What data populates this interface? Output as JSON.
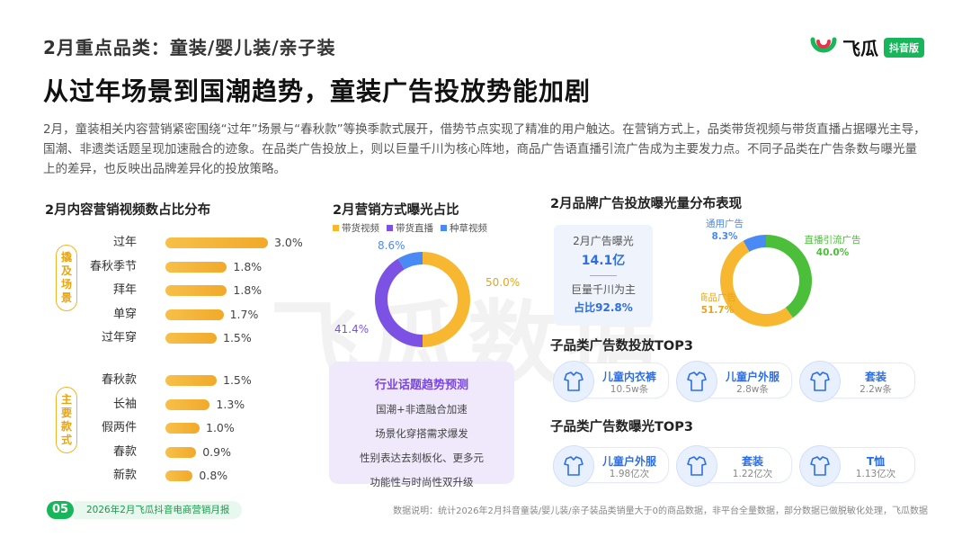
{
  "header": {
    "kicker": "2月重点品类：童装/婴儿装/亲子装",
    "title": "从过年场景到国潮趋势，童装广告投放势能加剧",
    "intro": "2月，童装相关内容营销紧密围绕“过年”场景与“春秋款”等换季款式展开，借势节点实现了精准的用户触达。在营销方式上，品类带货视频与带货直播占据曝光主导，国潮、非遗类话题呈现加速融合的迹象。在品类广告投放上，则以巨量千川为核心阵地，商品广告语直播引流广告成为主要发力点。不同子品类在广告条数与曝光量上的差异，也反映出品牌差异化的投放策略。"
  },
  "logo": {
    "name": "飞瓜",
    "badge": "抖音版",
    "color": "#18b65a"
  },
  "watermark": "飞瓜数据",
  "left_chart": {
    "title": "2月内容营销视频数占比分布",
    "groups": [
      {
        "label": "撬及场景"
      },
      {
        "label": "主要款式"
      }
    ]
  },
  "mid_chart": {
    "title": "2月营销方式曝光占比",
    "legend": [
      "带货视频",
      "带货直播",
      "种草视频"
    ]
  },
  "right_chart": {
    "title": "2月品牌广告投放曝光量分布表现",
    "summary": {
      "line1": "2月广告曝光",
      "value": "14.1亿",
      "line2": "巨量千川为主",
      "ratio": "占比92.8%"
    },
    "slice_labels": [
      {
        "name": "直播引流广告",
        "pct": "40.0%"
      },
      {
        "name": "商品广告",
        "pct": "51.7%"
      },
      {
        "name": "通用广告",
        "pct": "8.3%"
      }
    ]
  },
  "trend": {
    "title": "行业话题趋势预测",
    "items": [
      "国潮+非遗融合加速",
      "场景化穿搭需求爆发",
      "性别表达去刻板化、更多元",
      "功能性与时尚性双升级"
    ]
  },
  "top_count": {
    "title": "子品类广告数投放TOP3",
    "items": [
      {
        "name": "儿童内衣裤",
        "value": "10.5w条",
        "icon": "underwear-icon"
      },
      {
        "name": "儿童户外服",
        "value": "2.8w条",
        "icon": "outdoor-jacket-icon"
      },
      {
        "name": "套装",
        "value": "2.2w条",
        "icon": "suit-icon"
      }
    ]
  },
  "top_exposure": {
    "title": "子品类广告数曝光TOP3",
    "items": [
      {
        "name": "儿童户外服",
        "value": "1.98亿次",
        "icon": "outdoor-jacket-icon"
      },
      {
        "name": "套装",
        "value": "1.22亿次",
        "icon": "suit-icon"
      },
      {
        "name": "T恤",
        "value": "1.13亿次",
        "icon": "tshirt-icon"
      }
    ]
  },
  "footer": {
    "page": "05",
    "report": "2026年2月飞瓜抖音电商营销月报",
    "note": "数据说明：统计2026年2月抖音童装/婴儿装/亲子装品类销量大于0的商品数据，非平台全量数据，部分数据已做脱敏化处理，飞瓜数据"
  },
  "colors": {
    "bar": "#f2b131",
    "video": "#f7b731",
    "live": "#7b52e3",
    "seed": "#4a8af4",
    "brand_green": "#4cbf3a",
    "brand_yellow": "#f7b731",
    "brand_blue": "#4a8af4"
  },
  "chart_data": [
    {
      "type": "bar",
      "title": "2月内容营销视频数占比分布",
      "unit": "%",
      "groups": [
        {
          "name": "撬及场景",
          "categories": [
            "过年",
            "春秋季节",
            "拜年",
            "单穿",
            "过年穿"
          ],
          "values": [
            3.0,
            1.8,
            1.8,
            1.7,
            1.5
          ],
          "labels": [
            "3.0%",
            "1.8%",
            "1.8%",
            "1.7%",
            "1.5%"
          ]
        },
        {
          "name": "主要款式",
          "categories": [
            "春秋款",
            "长袖",
            "假两件",
            "春款",
            "新款"
          ],
          "values": [
            1.5,
            1.3,
            1.0,
            0.9,
            0.8
          ],
          "labels": [
            "1.5%",
            "1.3%",
            "1.0%",
            "0.9%",
            "0.8%"
          ]
        }
      ]
    },
    {
      "type": "pie",
      "title": "2月营销方式曝光占比",
      "categories": [
        "带货视频",
        "带货直播",
        "种草视频"
      ],
      "values": [
        50.0,
        41.4,
        8.6
      ],
      "labels": [
        "50.0%",
        "41.4%",
        "8.6%"
      ]
    },
    {
      "type": "pie",
      "title": "2月品牌广告投放曝光量分布表现",
      "categories": [
        "直播引流广告",
        "商品广告",
        "通用广告"
      ],
      "values": [
        40.0,
        51.7,
        8.3
      ]
    }
  ]
}
